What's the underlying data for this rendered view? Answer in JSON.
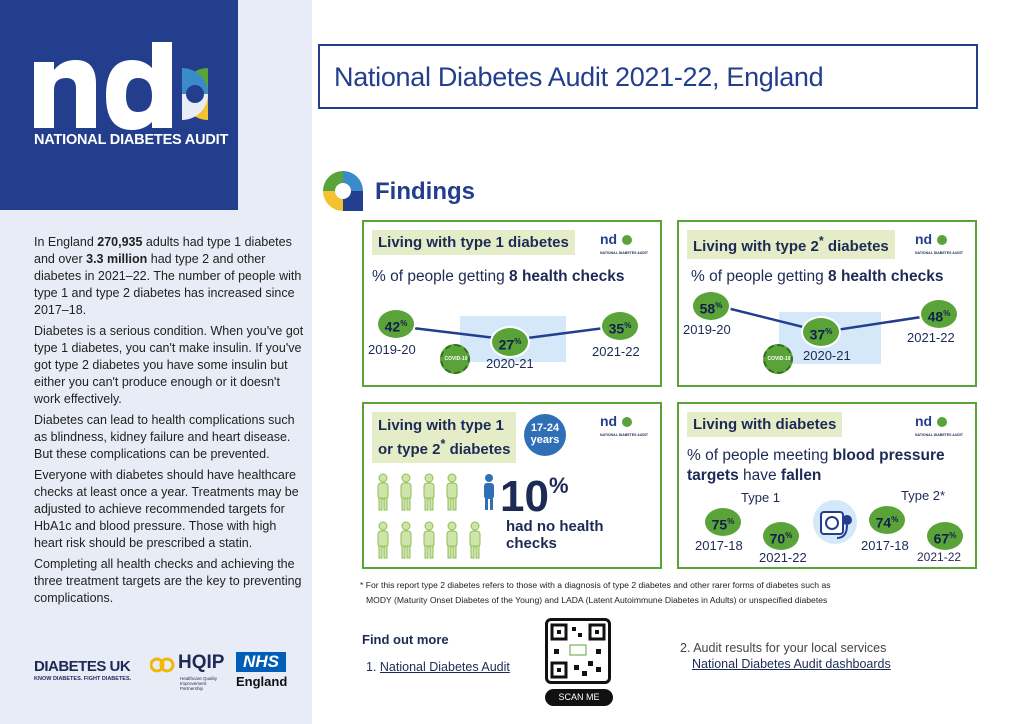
{
  "org": {
    "logo_letters": "nda",
    "name": "NATIONAL DIABETES AUDIT"
  },
  "title": "National Diabetes Audit 2021-22, England",
  "findings_title": "Findings",
  "intro": {
    "p1_pre": "In England ",
    "p1_num1": "270,935",
    "p1_mid": " adults had type 1 diabetes and over ",
    "p1_num2": "3.3 million",
    "p1_post": " had type 2 and other diabetes in 2021–22. The number of people with type 1 and type 2 diabetes has increased since 2017–18.",
    "p2": "Diabetes is a serious condition. When you've got type 1 diabetes, you can't make insulin. If you've got type 2 diabetes you have some insulin but either you can't produce enough or it doesn't work effectively.",
    "p3": "Diabetes can lead to health complications such as blindness, kidney failure and heart disease. But these complications can be prevented.",
    "p4": "Everyone with diabetes should have healthcare checks at least once a year. Treatments may be adjusted to achieve recommended targets for HbA1c and blood pressure. Those with high heart risk should be prescribed a statin.",
    "p5": "Completing all health checks and achieving the three treatment targets are the key to preventing complications."
  },
  "card_t1": {
    "heading": "Living with type 1 diabetes",
    "sub_pre": "% of people getting ",
    "sub_bold": "8 health checks",
    "points": [
      {
        "year": "2019-20",
        "value": 42
      },
      {
        "year": "2020-21",
        "value": 27
      },
      {
        "year": "2021-22",
        "value": 35
      }
    ]
  },
  "card_t2": {
    "heading_pre": "Living with type 2",
    "heading_sup": "*",
    "heading_post": " diabetes",
    "sub_pre": "% of people getting ",
    "sub_bold": "8 health checks",
    "points": [
      {
        "year": "2019-20",
        "value": 58
      },
      {
        "year": "2020-21",
        "value": 37
      },
      {
        "year": "2021-22",
        "value": 48
      }
    ]
  },
  "card_young": {
    "heading_l1": "Living with type 1",
    "heading_l2_pre": "or type 2",
    "heading_sup": "*",
    "heading_l2_post": " diabetes",
    "age_l1": "17-24",
    "age_l2": "years",
    "value": 10,
    "caption_l1": "had no health",
    "caption_l2": "checks"
  },
  "card_bp": {
    "heading": "Living with diabetes",
    "sub_pre": "% of people meeting ",
    "sub_bold1": "blood pressure targets",
    "sub_mid": " have ",
    "sub_bold2": "fallen",
    "type1_label": "Type 1",
    "type2_label": "Type 2*",
    "type1": [
      {
        "year": "2017-18",
        "value": 75
      },
      {
        "year": "2021-22",
        "value": 70
      }
    ],
    "type2": [
      {
        "year": "2017-18",
        "value": 74
      },
      {
        "year": "2021-22",
        "value": 67
      }
    ]
  },
  "pct": "%",
  "covid_label": "COVID-19",
  "footnote_l1": "* For this report type 2 diabetes refers to those with a diagnosis of type 2 diabetes and other rarer forms of diabetes such as",
  "footnote_l2": "MODY (Maturity Onset Diabetes of the Young) and LADA (Latent Autoimmune Diabetes in Adults) or unspecified diabetes",
  "find_more": "Find out more",
  "link1_num": "1. ",
  "link1": "National Diabetes Audit",
  "link2_pre": "2. Audit results for your local services",
  "link2": "National Diabetes Audit dashboards",
  "scan_me": "SCAN ME",
  "partners": {
    "diabetes_uk": "DIABETES UK",
    "diabetes_uk_tag": "KNOW DIABETES. FIGHT DIABETES.",
    "hqip": "HQIP",
    "hqip_tag": "Healthcare Quality Improvement Partnership",
    "nhs": "NHS",
    "nhs_region": "England"
  },
  "colors": {
    "navy": "#243e8e",
    "green": "#5aa339",
    "light_green": "#e4edc7",
    "sky": "#d5e8f9"
  }
}
